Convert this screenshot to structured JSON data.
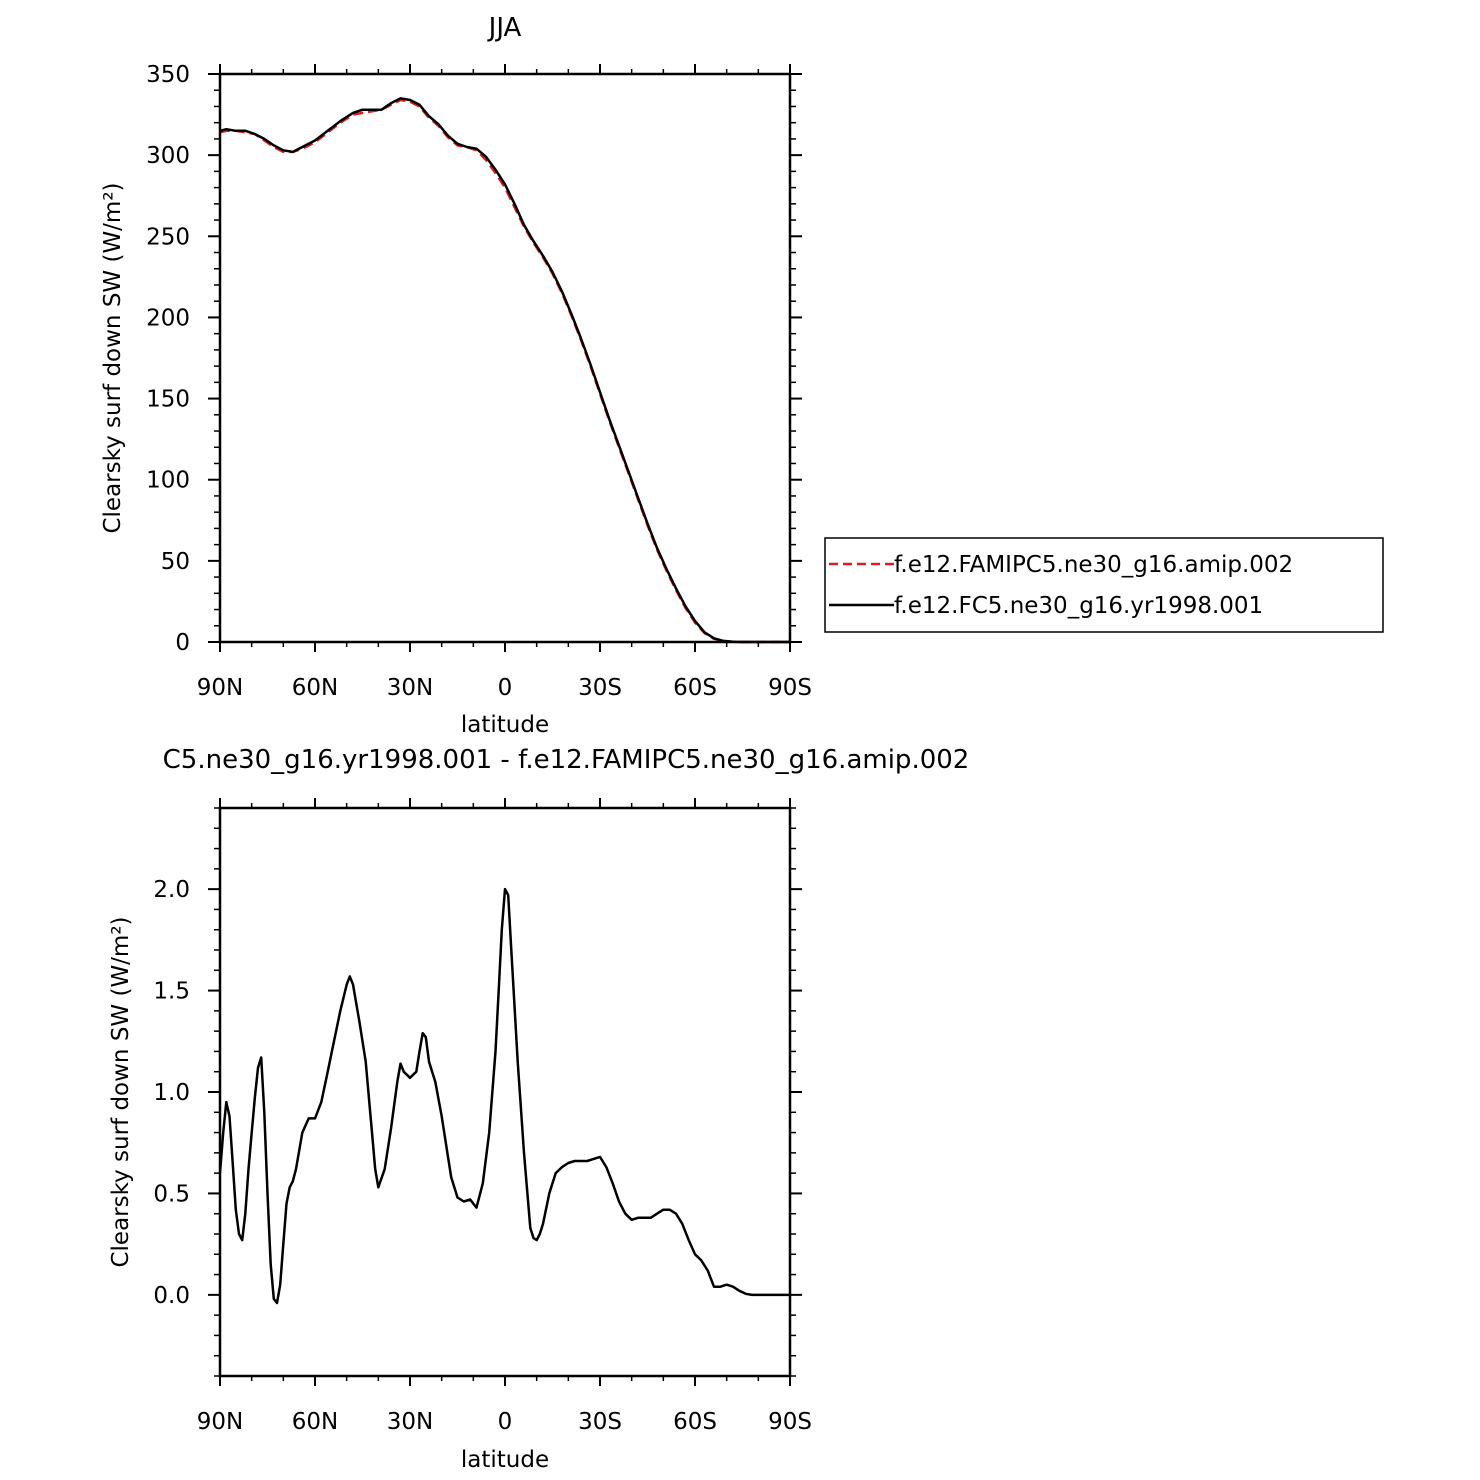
{
  "figure": {
    "top_title": "JJA",
    "bottom_title": "C5.ne30_g16.yr1998.001 - f.e12.FAMIPC5.ne30_g16.amip.002"
  },
  "chart_data": [
    {
      "type": "line",
      "title": "JJA",
      "xlabel": "latitude",
      "ylabel": "Clearsky surf down SW (W/m²)",
      "xlim": [
        90,
        -90
      ],
      "ylim": [
        0,
        350
      ],
      "xticks": [
        {
          "value": 90,
          "label": "90N"
        },
        {
          "value": 60,
          "label": "60N"
        },
        {
          "value": 30,
          "label": "30N"
        },
        {
          "value": 0,
          "label": "0"
        },
        {
          "value": -30,
          "label": "30S"
        },
        {
          "value": -60,
          "label": "60S"
        },
        {
          "value": -90,
          "label": "90S"
        }
      ],
      "yticks": [
        0,
        50,
        100,
        150,
        200,
        250,
        300,
        350
      ],
      "grid": false,
      "legend": "right",
      "series": [
        {
          "name": "f.e12.FAMIPC5.ne30_g16.amip.002",
          "color": "#e31a1c",
          "style": "dashed",
          "x": [
            90,
            88,
            85,
            82,
            79,
            76,
            73,
            70,
            67,
            64,
            60,
            56,
            52,
            48,
            45,
            42,
            39,
            36,
            33,
            30,
            27,
            24,
            21,
            18,
            15,
            12,
            9,
            6,
            3,
            0,
            -3,
            -6,
            -9,
            -12,
            -15,
            -18,
            -21,
            -24,
            -27,
            -30,
            -33,
            -36,
            -39,
            -42,
            -45,
            -48,
            -51,
            -54,
            -57,
            -60,
            -63,
            -66,
            -69,
            -72,
            -75,
            -78,
            -81,
            -84,
            -87,
            -90
          ],
          "y": [
            314,
            315,
            315,
            314,
            313,
            309,
            305,
            302,
            302,
            304,
            308,
            314,
            320,
            325,
            326,
            327,
            328,
            331,
            334,
            333,
            330,
            323,
            318,
            311,
            306,
            305,
            303,
            297,
            289,
            280,
            268,
            256,
            246,
            237,
            227,
            215,
            201,
            186,
            170,
            153,
            136,
            120,
            104,
            88,
            72,
            57,
            44,
            32,
            21,
            12,
            5.5,
            2,
            0.6,
            0.1,
            0,
            0,
            0,
            0,
            0,
            0
          ]
        },
        {
          "name": "f.e12.FC5.ne30_g16.yr1998.001",
          "color": "#000000",
          "style": "solid",
          "x": [
            90,
            88,
            85,
            82,
            79,
            76,
            73,
            70,
            67,
            64,
            60,
            56,
            52,
            48,
            45,
            42,
            39,
            36,
            33,
            30,
            27,
            24,
            21,
            18,
            15,
            12,
            9,
            6,
            3,
            0,
            -3,
            -6,
            -9,
            -12,
            -15,
            -18,
            -21,
            -24,
            -27,
            -30,
            -33,
            -36,
            -39,
            -42,
            -45,
            -48,
            -51,
            -54,
            -57,
            -60,
            -63,
            -66,
            -69,
            -72,
            -75,
            -78,
            -81,
            -84,
            -87,
            -90
          ],
          "y": [
            315,
            316,
            315,
            315,
            313,
            310,
            306,
            303,
            302,
            305,
            309,
            315,
            321,
            326,
            328,
            328,
            328,
            332,
            335,
            334,
            331,
            324,
            319,
            312,
            307,
            305,
            304,
            299,
            291,
            282,
            270,
            257,
            247,
            238,
            228,
            216,
            202,
            187,
            171,
            154,
            137,
            121,
            105,
            89,
            73,
            58,
            45,
            33,
            22,
            13,
            6,
            2.3,
            0.7,
            0.1,
            0,
            0,
            0,
            0,
            0,
            0
          ]
        }
      ]
    },
    {
      "type": "line",
      "title": "C5.ne30_g16.yr1998.001 - f.e12.FAMIPC5.ne30_g16.amip.002",
      "xlabel": "latitude",
      "ylabel": "Clearsky surf down SW (W/m²)",
      "xlim": [
        90,
        -90
      ],
      "ylim": [
        -0.4,
        2.4
      ],
      "xticks": [
        {
          "value": 90,
          "label": "90N"
        },
        {
          "value": 60,
          "label": "60N"
        },
        {
          "value": 30,
          "label": "30N"
        },
        {
          "value": 0,
          "label": "0"
        },
        {
          "value": -30,
          "label": "30S"
        },
        {
          "value": -60,
          "label": "60S"
        },
        {
          "value": -90,
          "label": "90S"
        }
      ],
      "yticks": [
        {
          "value": 0.0,
          "label": "0.0"
        },
        {
          "value": 0.5,
          "label": "0.5"
        },
        {
          "value": 1.0,
          "label": "1.0"
        },
        {
          "value": 1.5,
          "label": "1.5"
        },
        {
          "value": 2.0,
          "label": "2.0"
        }
      ],
      "grid": false,
      "series": [
        {
          "color": "#000000",
          "style": "solid",
          "x": [
            90,
            89,
            88,
            87,
            86,
            85,
            84,
            83,
            82,
            81,
            80,
            79,
            78,
            77,
            76,
            75,
            74,
            73,
            72,
            71,
            70,
            69,
            68,
            67,
            66,
            64,
            62,
            60,
            58,
            56,
            54,
            52,
            50,
            49,
            48,
            46,
            44,
            42,
            41,
            40,
            38,
            36,
            34,
            33,
            32,
            30,
            28,
            27,
            26,
            25,
            24,
            22,
            20,
            18,
            17,
            15,
            13,
            11,
            10,
            9,
            7,
            5,
            3,
            2,
            1,
            0,
            -1,
            -2,
            -4,
            -6,
            -8,
            -9,
            -10,
            -11,
            -12,
            -14,
            -16,
            -18,
            -20,
            -22,
            -24,
            -26,
            -28,
            -30,
            -32,
            -34,
            -36,
            -38,
            -40,
            -42,
            -44,
            -46,
            -48,
            -50,
            -52,
            -54,
            -56,
            -58,
            -60,
            -62,
            -64,
            -66,
            -68,
            -70,
            -72,
            -74,
            -76,
            -78,
            -80,
            -82,
            -84,
            -86,
            -88,
            -90
          ],
          "y": [
            0.6,
            0.8,
            0.95,
            0.88,
            0.65,
            0.42,
            0.3,
            0.27,
            0.4,
            0.62,
            0.8,
            0.97,
            1.12,
            1.17,
            0.9,
            0.5,
            0.15,
            -0.02,
            -0.04,
            0.05,
            0.25,
            0.45,
            0.53,
            0.56,
            0.62,
            0.8,
            0.87,
            0.87,
            0.95,
            1.1,
            1.25,
            1.4,
            1.53,
            1.57,
            1.53,
            1.35,
            1.15,
            0.8,
            0.62,
            0.53,
            0.62,
            0.82,
            1.05,
            1.14,
            1.1,
            1.07,
            1.1,
            1.2,
            1.29,
            1.27,
            1.15,
            1.05,
            0.88,
            0.68,
            0.58,
            0.48,
            0.46,
            0.47,
            0.45,
            0.43,
            0.55,
            0.8,
            1.2,
            1.5,
            1.8,
            2.0,
            1.97,
            1.7,
            1.15,
            0.7,
            0.33,
            0.28,
            0.27,
            0.3,
            0.35,
            0.5,
            0.6,
            0.63,
            0.65,
            0.66,
            0.66,
            0.66,
            0.67,
            0.68,
            0.63,
            0.55,
            0.46,
            0.4,
            0.37,
            0.38,
            0.38,
            0.38,
            0.4,
            0.42,
            0.42,
            0.4,
            0.35,
            0.27,
            0.2,
            0.17,
            0.12,
            0.04,
            0.04,
            0.05,
            0.04,
            0.02,
            0.005,
            0,
            0,
            0,
            0,
            0,
            0,
            0
          ]
        }
      ]
    }
  ]
}
